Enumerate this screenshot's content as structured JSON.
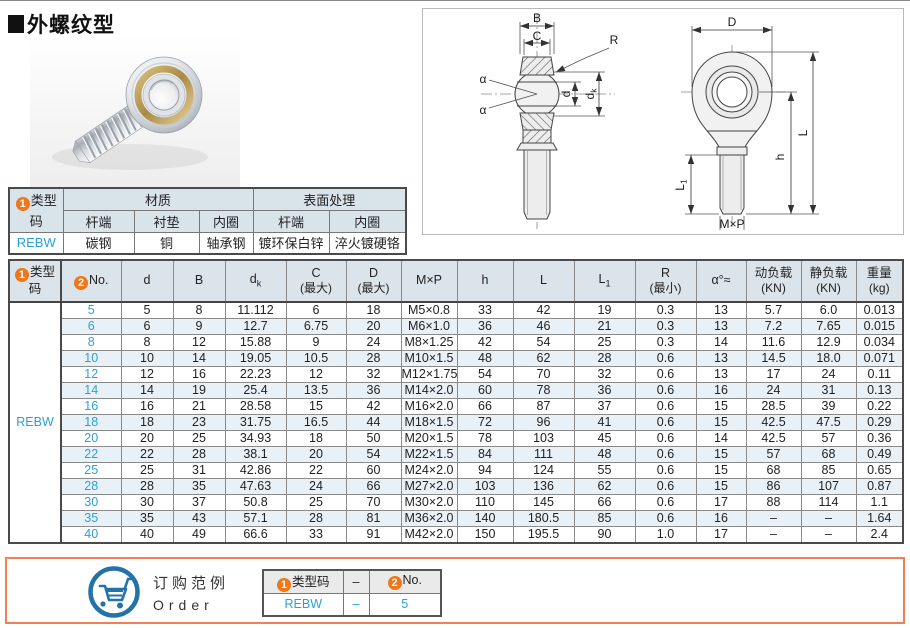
{
  "title": {
    "text": "外螺纹型"
  },
  "badges": {
    "one": "1",
    "two": "2"
  },
  "material_table": {
    "type_code_header": "类型码",
    "material_group": "材质",
    "surface_group": "表面处理",
    "sub_headers": [
      "杆端",
      "衬垫",
      "内圈",
      "杆端",
      "内圈"
    ],
    "type_code": "REBW",
    "values": [
      "碳钢",
      "铜",
      "轴承钢",
      "镀环保白锌",
      "淬火镀硬铬"
    ]
  },
  "drawings": {
    "side": {
      "B": "B",
      "C": "C",
      "R": "R",
      "alpha": "α",
      "d": "d",
      "dk_main": "d",
      "dk_sub": "k"
    },
    "front": {
      "D": "D",
      "L": "L",
      "h": "h",
      "L1_main": "L",
      "L1_sub": "1",
      "mxp": "M×P"
    }
  },
  "main_table": {
    "type_code_header": "类型码",
    "no_header": "No.",
    "headers": {
      "d": "d",
      "B": "B",
      "dk_main": "d",
      "dk_sub": "k",
      "C1": "C",
      "C2": "(最大)",
      "D1": "D",
      "D2": "(最大)",
      "mxp": "M×P",
      "h": "h",
      "L": "L",
      "L1_main": "L",
      "L1_sub": "1",
      "R1": "R",
      "R2": "(最小)",
      "alpha": "α°≈",
      "dyn1": "动负载",
      "dyn2": "(KN)",
      "stat1": "静负载",
      "stat2": "(KN)",
      "wt1": "重量",
      "wt2": "(kg)"
    },
    "type_code": "REBW",
    "rows": [
      [
        "5",
        "5",
        "8",
        "11.112",
        "6",
        "18",
        "M5×0.8",
        "33",
        "42",
        "19",
        "0.3",
        "13",
        "5.7",
        "6.0",
        "0.013"
      ],
      [
        "6",
        "6",
        "9",
        "12.7",
        "6.75",
        "20",
        "M6×1.0",
        "36",
        "46",
        "21",
        "0.3",
        "13",
        "7.2",
        "7.65",
        "0.015"
      ],
      [
        "8",
        "8",
        "12",
        "15.88",
        "9",
        "24",
        "M8×1.25",
        "42",
        "54",
        "25",
        "0.3",
        "14",
        "11.6",
        "12.9",
        "0.034"
      ],
      [
        "10",
        "10",
        "14",
        "19.05",
        "10.5",
        "28",
        "M10×1.5",
        "48",
        "62",
        "28",
        "0.6",
        "13",
        "14.5",
        "18.0",
        "0.071"
      ],
      [
        "12",
        "12",
        "16",
        "22.23",
        "12",
        "32",
        "M12×1.75",
        "54",
        "70",
        "32",
        "0.6",
        "13",
        "17",
        "24",
        "0.11"
      ],
      [
        "14",
        "14",
        "19",
        "25.4",
        "13.5",
        "36",
        "M14×2.0",
        "60",
        "78",
        "36",
        "0.6",
        "16",
        "24",
        "31",
        "0.13"
      ],
      [
        "16",
        "16",
        "21",
        "28.58",
        "15",
        "42",
        "M16×2.0",
        "66",
        "87",
        "37",
        "0.6",
        "15",
        "28.5",
        "39",
        "0.22"
      ],
      [
        "18",
        "18",
        "23",
        "31.75",
        "16.5",
        "44",
        "M18×1.5",
        "72",
        "96",
        "41",
        "0.6",
        "15",
        "42.5",
        "47.5",
        "0.29"
      ],
      [
        "20",
        "20",
        "25",
        "34.93",
        "18",
        "50",
        "M20×1.5",
        "78",
        "103",
        "45",
        "0.6",
        "14",
        "42.5",
        "57",
        "0.36"
      ],
      [
        "22",
        "22",
        "28",
        "38.1",
        "20",
        "54",
        "M22×1.5",
        "84",
        "111",
        "48",
        "0.6",
        "15",
        "57",
        "68",
        "0.49"
      ],
      [
        "25",
        "25",
        "31",
        "42.86",
        "22",
        "60",
        "M24×2.0",
        "94",
        "124",
        "55",
        "0.6",
        "15",
        "68",
        "85",
        "0.65"
      ],
      [
        "28",
        "28",
        "35",
        "47.63",
        "24",
        "66",
        "M27×2.0",
        "103",
        "136",
        "62",
        "0.6",
        "15",
        "86",
        "107",
        "0.87"
      ],
      [
        "30",
        "30",
        "37",
        "50.8",
        "25",
        "70",
        "M30×2.0",
        "110",
        "145",
        "66",
        "0.6",
        "17",
        "88",
        "114",
        "1.1"
      ],
      [
        "35",
        "35",
        "43",
        "57.1",
        "28",
        "81",
        "M36×2.0",
        "140",
        "180.5",
        "85",
        "0.6",
        "16",
        "–",
        "–",
        "1.64"
      ],
      [
        "40",
        "40",
        "49",
        "66.6",
        "33",
        "91",
        "M42×2.0",
        "150",
        "195.5",
        "90",
        "1.0",
        "17",
        "–",
        "–",
        "2.4"
      ]
    ]
  },
  "order": {
    "label_cn": "订购范例",
    "label_en": "Order",
    "type_code_header": "类型码",
    "no_header": "No.",
    "dash": "–",
    "type_code": "REBW",
    "no_value": "5"
  },
  "colors": {
    "accent_blue": "#2ba0dc",
    "badge_orange": "#f07618",
    "order_border": "#f28057",
    "cart_blue": "#2373a9"
  }
}
